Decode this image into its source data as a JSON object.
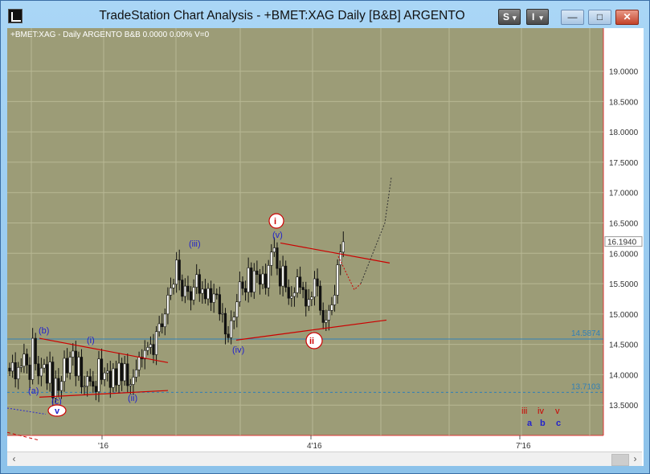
{
  "window": {
    "title": "TradeStation Chart Analysis - +BMET:XAG Daily [B&B] ARGENTO",
    "s_button": "S",
    "i_button": "I",
    "dropdown_arrow": "▾",
    "minimize": "—",
    "maximize": "□",
    "close": "✕"
  },
  "scrollbar": {
    "left": "‹",
    "right": "›"
  },
  "chart": {
    "header": "+BMET:XAG - Daily  ARGENTO  B&B  0.0000  0.00%  V=0",
    "colors": {
      "bg": "#9c9c77",
      "grid": "#b8b894",
      "wave_blue": "#2222cc",
      "wave_red": "#cc0000",
      "hline": "#2f7fb8"
    },
    "x_labels": [
      "'16",
      "4'16",
      "7'16"
    ]
  },
  "chart_data": {
    "type": "candlestick",
    "title": "+BMET:XAG - Daily  ARGENTO  B&B  0.0000  0.00%  V=0",
    "ylim": [
      13.0,
      19.55
    ],
    "y_ticks": [
      13.5,
      14.0,
      14.5,
      15.0,
      15.5,
      16.0,
      16.5,
      17.0,
      17.5,
      18.0,
      18.5,
      19.0
    ],
    "y_tick_labels": [
      "13.5000",
      "14.0000",
      "14.5000",
      "15.0000",
      "15.5000",
      "16.0000",
      "16.5000",
      "17.0000",
      "17.5000",
      "18.0000",
      "18.5000",
      "19.0000"
    ],
    "x_tick_labels": [
      "'16",
      "4'16",
      "7'16"
    ],
    "last_price": 16.194,
    "last_price_label": "16.1940",
    "horizontal_levels": [
      {
        "value": 14.5874,
        "label": "14.5874",
        "style": "solid"
      },
      {
        "value": 13.7103,
        "label": "13.7103",
        "style": "dashed"
      }
    ],
    "closes": [
      14.06,
      14.2,
      13.93,
      14.12,
      14.14,
      14.34,
      14.16,
      13.92,
      14.6,
      14.18,
      13.98,
      14.11,
      14.17,
      13.86,
      14.21,
      13.62,
      13.94,
      13.74,
      13.89,
      14.27,
      14.03,
      14.29,
      14.39,
      13.98,
      14.29,
      13.8,
      13.81,
      13.97,
      13.89,
      13.81,
      13.72,
      14.26,
      13.92,
      14.03,
      14.06,
      13.79,
      14.1,
      13.83,
      14.19,
      13.9,
      14.18,
      13.82,
      13.84,
      13.96,
      14.08,
      14.29,
      14.26,
      14.4,
      14.45,
      14.5,
      14.33,
      14.71,
      14.84,
      14.79,
      15.0,
      15.31,
      15.43,
      15.49,
      15.89,
      15.56,
      15.29,
      15.46,
      15.37,
      15.23,
      15.44,
      15.65,
      15.34,
      15.41,
      15.25,
      15.42,
      15.19,
      15.33,
      15.32,
      15.0,
      15.01,
      14.67,
      14.61,
      14.89,
      14.95,
      15.2,
      15.53,
      15.42,
      15.36,
      15.76,
      15.36,
      15.71,
      15.65,
      15.49,
      15.66,
      15.43,
      15.8,
      16.02,
      16.09,
      15.75,
      15.46,
      15.79,
      15.44,
      15.26,
      15.29,
      15.35,
      15.61,
      15.44,
      15.4,
      15.13,
      15.24,
      15.28,
      15.58,
      15.46,
      15.06,
      14.86,
      14.9,
      15.06,
      15.15,
      15.31,
      15.81,
      16.02,
      16.19
    ],
    "wave_labels": {
      "blue": [
        "(a)",
        "(b)",
        "(c)",
        "(i)",
        "(ii)",
        "(iii)",
        "(iv)",
        "(v)",
        "v",
        "a",
        "b",
        "c"
      ],
      "red": [
        "i",
        "ii",
        "iii",
        "iv",
        "v"
      ]
    }
  }
}
